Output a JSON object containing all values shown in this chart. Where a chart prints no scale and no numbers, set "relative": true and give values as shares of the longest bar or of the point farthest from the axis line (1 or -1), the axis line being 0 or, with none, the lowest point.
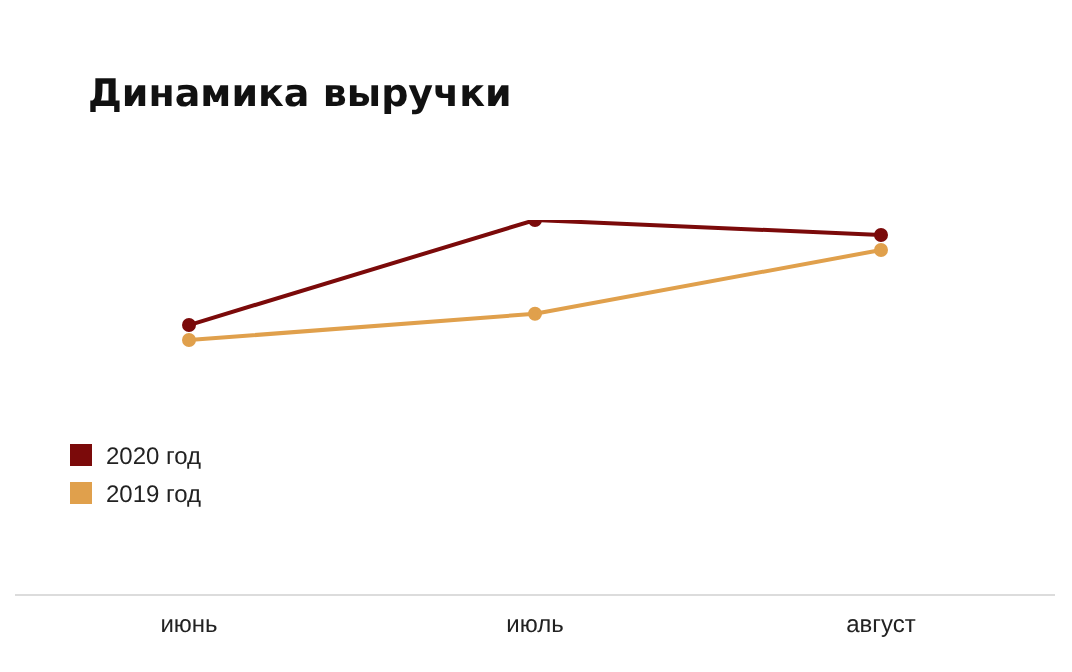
{
  "chart_data": {
    "type": "line",
    "title": "Динамика выручки",
    "categories": [
      "июнь",
      "июль",
      "август"
    ],
    "relative": true,
    "grid": false,
    "legend": "bottom left",
    "marker": "circle",
    "line_style": "solid",
    "series": [
      {
        "name": "2020 год",
        "color": "#7b0a0a",
        "values": [
          0.72,
          1,
          0.96
        ]
      },
      {
        "name": "2019 год",
        "color": "#e0a04c",
        "values": [
          0.68,
          0.75,
          0.92
        ]
      }
    ]
  }
}
